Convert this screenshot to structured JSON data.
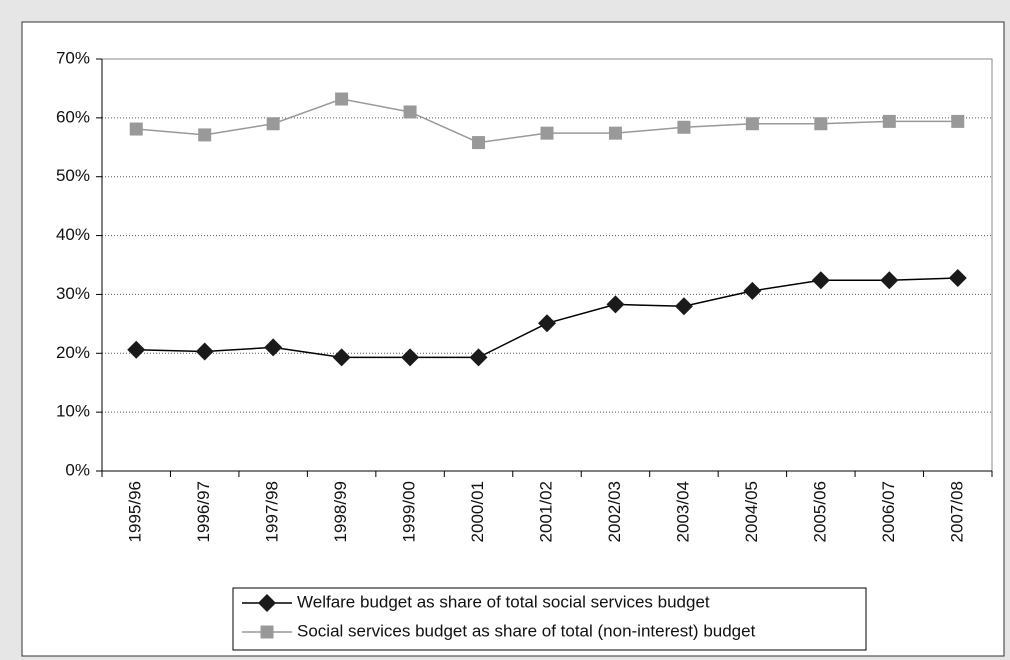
{
  "chart_data": {
    "type": "line",
    "categories": [
      "1995/96",
      "1996/97",
      "1997/98",
      "1998/99",
      "1999/00",
      "2000/01",
      "2001/02",
      "2002/03",
      "2003/04",
      "2004/05",
      "2005/06",
      "2006/07",
      "2007/08"
    ],
    "series": [
      {
        "name": "Welfare budget as share of total social services budget",
        "color": "#000000",
        "marker": "diamond",
        "values": [
          20.6,
          20.3,
          21.0,
          19.3,
          19.3,
          19.3,
          25.1,
          28.3,
          28.0,
          30.6,
          32.4,
          32.4,
          32.8
        ]
      },
      {
        "name": "Social services budget as share of total (non-interest) budget",
        "color": "#999999",
        "marker": "square",
        "values": [
          58.1,
          57.1,
          59.0,
          63.2,
          61.0,
          55.8,
          57.4,
          57.4,
          58.4,
          59.0,
          59.0,
          59.4,
          59.4
        ]
      }
    ],
    "ylim": [
      0,
      70
    ],
    "yticks": [
      {
        "value": 0,
        "label": "0%"
      },
      {
        "value": 10,
        "label": "10%"
      },
      {
        "value": 20,
        "label": "20%"
      },
      {
        "value": 30,
        "label": "30%"
      },
      {
        "value": 40,
        "label": "40%"
      },
      {
        "value": 50,
        "label": "50%"
      },
      {
        "value": 60,
        "label": "60%"
      },
      {
        "value": 70,
        "label": "70%"
      }
    ],
    "grid": true,
    "legend": "bottom"
  }
}
